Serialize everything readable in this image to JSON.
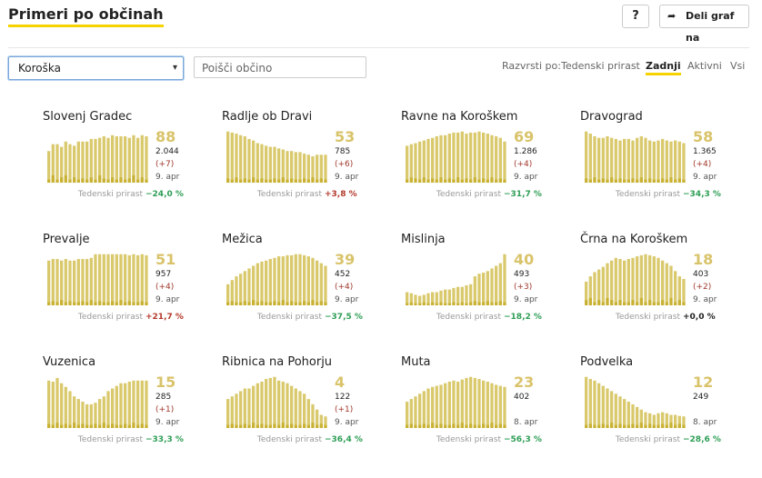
{
  "header": {
    "title": "Primeri po občinah",
    "help_label": "?",
    "share_label": "Deli graf na"
  },
  "filters": {
    "region_value": "Koroška",
    "search_placeholder": "Poišči občino",
    "sort_label": "Razvrsti po:",
    "sort_options": [
      "Tedenski prirast",
      "Zadnji",
      "Aktivni",
      "Vsi"
    ],
    "sort_active": "Zadnji"
  },
  "colors": {
    "bar_active": "#d9c96c",
    "bar_recent": "#c9b233",
    "accent": "#f5d300",
    "negative": "#2e9e56",
    "positive": "#b3392b"
  },
  "weekly_label": "Tedenski prirast",
  "municipalities": [
    {
      "name": "Slovenj Gradec",
      "active": "88",
      "total": "2.044",
      "delta": "(+7)",
      "date": "9. apr",
      "weekly": "−24,0 %",
      "trend": "neg",
      "bars": [
        0.6,
        0.73,
        0.73,
        0.68,
        0.78,
        0.73,
        0.7,
        0.78,
        0.78,
        0.78,
        0.83,
        0.83,
        0.85,
        0.88,
        0.85,
        0.9,
        0.88,
        0.88,
        0.88,
        0.85,
        0.9,
        0.85,
        0.9,
        0.88
      ],
      "dark": [
        0.06,
        0.14,
        0.06,
        0.1,
        0.14,
        0.06,
        0.1,
        0.06,
        0.08,
        0.06,
        0.1,
        0.06,
        0.14,
        0.08,
        0.06,
        0.1,
        0.06,
        0.1,
        0.06,
        0.08,
        0.14,
        0.06,
        0.1,
        0.06
      ]
    },
    {
      "name": "Radlje ob Dravi",
      "active": "53",
      "total": "785",
      "delta": "(+6)",
      "date": "9. apr",
      "weekly": "+3,8 %",
      "trend": "pos",
      "bars": [
        0.97,
        0.95,
        0.93,
        0.9,
        0.88,
        0.83,
        0.8,
        0.75,
        0.73,
        0.7,
        0.68,
        0.68,
        0.65,
        0.63,
        0.6,
        0.6,
        0.58,
        0.58,
        0.55,
        0.53,
        0.5,
        0.53,
        0.53,
        0.53
      ],
      "dark": [
        0.08,
        0.06,
        0.1,
        0.06,
        0.08,
        0.06,
        0.1,
        0.06,
        0.08,
        0.06,
        0.06,
        0.08,
        0.06,
        0.1,
        0.06,
        0.08,
        0.06,
        0.06,
        0.08,
        0.06,
        0.1,
        0.06,
        0.08,
        0.06
      ]
    },
    {
      "name": "Ravne na Koroškem",
      "active": "69",
      "total": "1.286",
      "delta": "(+4)",
      "date": "9. apr",
      "weekly": "−31,7 %",
      "trend": "neg",
      "bars": [
        0.7,
        0.73,
        0.75,
        0.78,
        0.8,
        0.83,
        0.85,
        0.88,
        0.9,
        0.9,
        0.93,
        0.95,
        0.95,
        0.97,
        0.93,
        0.95,
        0.95,
        0.97,
        0.95,
        0.93,
        0.9,
        0.88,
        0.85,
        0.78
      ],
      "dark": [
        0.06,
        0.1,
        0.08,
        0.06,
        0.1,
        0.06,
        0.08,
        0.06,
        0.1,
        0.06,
        0.08,
        0.06,
        0.1,
        0.06,
        0.08,
        0.06,
        0.1,
        0.06,
        0.08,
        0.06,
        0.1,
        0.06,
        0.08,
        0.06
      ]
    },
    {
      "name": "Dravograd",
      "active": "58",
      "total": "1.365",
      "delta": "(+4)",
      "date": "9. apr",
      "weekly": "−34,3 %",
      "trend": "neg",
      "bars": [
        0.97,
        0.93,
        0.88,
        0.85,
        0.85,
        0.88,
        0.85,
        0.83,
        0.8,
        0.83,
        0.83,
        0.8,
        0.85,
        0.88,
        0.85,
        0.8,
        0.78,
        0.8,
        0.83,
        0.8,
        0.78,
        0.8,
        0.78,
        0.75
      ],
      "dark": [
        0.08,
        0.06,
        0.1,
        0.06,
        0.08,
        0.06,
        0.1,
        0.06,
        0.08,
        0.06,
        0.06,
        0.08,
        0.06,
        0.1,
        0.06,
        0.08,
        0.06,
        0.06,
        0.08,
        0.06,
        0.1,
        0.06,
        0.08,
        0.06
      ]
    },
    {
      "name": "Prevalje",
      "active": "51",
      "total": "957",
      "delta": "(+4)",
      "date": "9. apr",
      "weekly": "+21,7 %",
      "trend": "pos",
      "bars": [
        0.85,
        0.88,
        0.88,
        0.85,
        0.88,
        0.85,
        0.85,
        0.88,
        0.88,
        0.88,
        0.9,
        0.97,
        0.97,
        0.97,
        0.97,
        0.97,
        0.97,
        0.97,
        0.97,
        0.95,
        0.97,
        0.95,
        0.97,
        0.95
      ],
      "dark": [
        0.06,
        0.08,
        0.06,
        0.1,
        0.06,
        0.08,
        0.06,
        0.06,
        0.08,
        0.06,
        0.1,
        0.06,
        0.08,
        0.06,
        0.06,
        0.08,
        0.06,
        0.1,
        0.06,
        0.08,
        0.06,
        0.06,
        0.08,
        0.06
      ]
    },
    {
      "name": "Mežica",
      "active": "39",
      "total": "452",
      "delta": "(+4)",
      "date": "9. apr",
      "weekly": "−37,5 %",
      "trend": "neg",
      "bars": [
        0.4,
        0.48,
        0.55,
        0.6,
        0.65,
        0.7,
        0.75,
        0.8,
        0.83,
        0.85,
        0.88,
        0.9,
        0.93,
        0.93,
        0.95,
        0.95,
        0.97,
        0.97,
        0.95,
        0.93,
        0.9,
        0.85,
        0.8,
        0.75
      ],
      "dark": [
        0.06,
        0.08,
        0.06,
        0.06,
        0.08,
        0.06,
        0.1,
        0.06,
        0.08,
        0.06,
        0.06,
        0.08,
        0.06,
        0.1,
        0.06,
        0.08,
        0.06,
        0.06,
        0.08,
        0.06,
        0.1,
        0.06,
        0.08,
        0.06
      ]
    },
    {
      "name": "Mislinja",
      "active": "40",
      "total": "493",
      "delta": "(+3)",
      "date": "9. apr",
      "weekly": "−18,2 %",
      "trend": "neg",
      "bars": [
        0.25,
        0.23,
        0.2,
        0.18,
        0.2,
        0.23,
        0.25,
        0.25,
        0.28,
        0.3,
        0.3,
        0.33,
        0.35,
        0.35,
        0.38,
        0.4,
        0.55,
        0.6,
        0.62,
        0.65,
        0.7,
        0.75,
        0.8,
        0.97
      ],
      "dark": [
        0.04,
        0.06,
        0.04,
        0.04,
        0.06,
        0.04,
        0.06,
        0.04,
        0.06,
        0.04,
        0.04,
        0.06,
        0.04,
        0.06,
        0.04,
        0.06,
        0.08,
        0.06,
        0.06,
        0.08,
        0.06,
        0.06,
        0.08,
        0.06
      ]
    },
    {
      "name": "Črna na Koroškem",
      "active": "18",
      "total": "403",
      "delta": "(+2)",
      "date": "9. apr",
      "weekly": "+0,0 %",
      "trend": "zero",
      "bars": [
        0.45,
        0.55,
        0.63,
        0.68,
        0.73,
        0.8,
        0.85,
        0.9,
        0.88,
        0.85,
        0.88,
        0.9,
        0.93,
        0.95,
        0.97,
        0.95,
        0.93,
        0.9,
        0.85,
        0.8,
        0.75,
        0.65,
        0.55,
        0.5
      ],
      "dark": [
        0.1,
        0.14,
        0.06,
        0.1,
        0.06,
        0.14,
        0.1,
        0.06,
        0.1,
        0.06,
        0.06,
        0.1,
        0.06,
        0.14,
        0.06,
        0.1,
        0.06,
        0.06,
        0.1,
        0.06,
        0.14,
        0.06,
        0.1,
        0.06
      ]
    },
    {
      "name": "Vuzenica",
      "active": "15",
      "total": "285",
      "delta": "(+1)",
      "date": "9. apr",
      "weekly": "−33,3 %",
      "trend": "neg",
      "bars": [
        0.9,
        0.88,
        0.95,
        0.85,
        0.78,
        0.7,
        0.6,
        0.55,
        0.5,
        0.45,
        0.45,
        0.48,
        0.55,
        0.6,
        0.7,
        0.75,
        0.8,
        0.85,
        0.85,
        0.88,
        0.9,
        0.9,
        0.9,
        0.9
      ],
      "dark": [
        0.08,
        0.06,
        0.1,
        0.06,
        0.08,
        0.06,
        0.1,
        0.06,
        0.08,
        0.06,
        0.06,
        0.08,
        0.06,
        0.1,
        0.06,
        0.08,
        0.06,
        0.06,
        0.08,
        0.06,
        0.1,
        0.06,
        0.08,
        0.06
      ]
    },
    {
      "name": "Ribnica na Pohorju",
      "active": "4",
      "total": "122",
      "delta": "(+1)",
      "date": "9. apr",
      "weekly": "−36,4 %",
      "trend": "neg",
      "bars": [
        0.55,
        0.6,
        0.65,
        0.7,
        0.75,
        0.75,
        0.8,
        0.85,
        0.88,
        0.93,
        0.95,
        0.97,
        0.9,
        0.88,
        0.85,
        0.8,
        0.75,
        0.7,
        0.65,
        0.55,
        0.45,
        0.35,
        0.25,
        0.22
      ],
      "dark": [
        0.06,
        0.08,
        0.06,
        0.06,
        0.08,
        0.06,
        0.1,
        0.06,
        0.08,
        0.06,
        0.06,
        0.08,
        0.06,
        0.1,
        0.06,
        0.08,
        0.06,
        0.06,
        0.08,
        0.06,
        0.1,
        0.06,
        0.08,
        0.06
      ]
    },
    {
      "name": "Muta",
      "active": "23",
      "total": "402",
      "delta": "",
      "date": "8. apr",
      "weekly": "−56,3 %",
      "trend": "neg",
      "bars": [
        0.5,
        0.55,
        0.6,
        0.65,
        0.7,
        0.75,
        0.78,
        0.8,
        0.82,
        0.85,
        0.88,
        0.9,
        0.88,
        0.92,
        0.95,
        0.97,
        0.95,
        0.93,
        0.9,
        0.88,
        0.85,
        0.82,
        0.8,
        0.78
      ],
      "dark": [
        0.06,
        0.08,
        0.06,
        0.06,
        0.08,
        0.06,
        0.1,
        0.06,
        0.08,
        0.06,
        0.06,
        0.08,
        0.06,
        0.1,
        0.06,
        0.08,
        0.06,
        0.06,
        0.08,
        0.06,
        0.1,
        0.06,
        0.08,
        0.06
      ]
    },
    {
      "name": "Podvelka",
      "active": "12",
      "total": "249",
      "delta": "",
      "date": "8. apr",
      "weekly": "−28,6 %",
      "trend": "neg",
      "bars": [
        0.97,
        0.93,
        0.9,
        0.85,
        0.8,
        0.75,
        0.7,
        0.65,
        0.6,
        0.55,
        0.5,
        0.45,
        0.4,
        0.35,
        0.3,
        0.28,
        0.25,
        0.28,
        0.3,
        0.28,
        0.25,
        0.25,
        0.23,
        0.22
      ],
      "dark": [
        0.06,
        0.08,
        0.06,
        0.06,
        0.08,
        0.06,
        0.1,
        0.06,
        0.08,
        0.06,
        0.06,
        0.08,
        0.06,
        0.1,
        0.06,
        0.08,
        0.06,
        0.06,
        0.08,
        0.06,
        0.1,
        0.06,
        0.08,
        0.06
      ]
    }
  ]
}
